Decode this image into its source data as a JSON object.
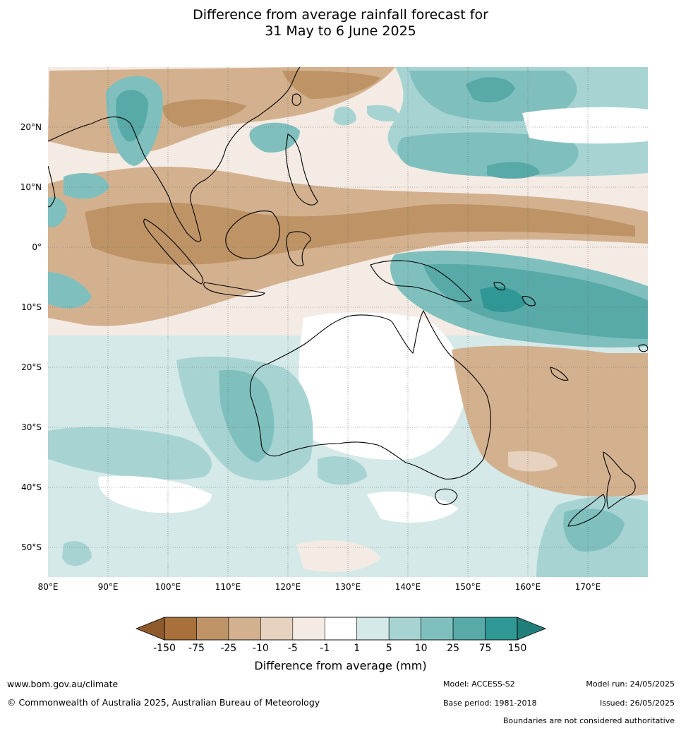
{
  "title_line1": "Difference from average rainfall forecast for",
  "title_line2": "31 May to 6 June 2025",
  "map": {
    "lon_ticks": [
      "80°E",
      "90°E",
      "100°E",
      "110°E",
      "120°E",
      "130°E",
      "140°E",
      "150°E",
      "160°E",
      "170°E"
    ],
    "lat_ticks": [
      "20°N",
      "10°N",
      "0°",
      "10°S",
      "20°S",
      "30°S",
      "40°S",
      "50°S"
    ],
    "lon_range": [
      80,
      180
    ],
    "lat_range": [
      -55,
      30
    ]
  },
  "colorbar": {
    "label": "Difference from average (mm)",
    "tick_labels": [
      "-150",
      "-75",
      "-25",
      "-10",
      "-5",
      "-1",
      "1",
      "5",
      "10",
      "25",
      "75",
      "150"
    ],
    "colors": [
      "#a8703a",
      "#be9466",
      "#d3b18f",
      "#e6d2bf",
      "#f4ebe4",
      "#ffffff",
      "#d4e9e8",
      "#a7d4d3",
      "#7fc0be",
      "#58aaa8",
      "#2f9894"
    ],
    "under_color": "#8f5a2b",
    "over_color": "#217e7a"
  },
  "footer": {
    "website": "www.bom.gov.au/climate",
    "copyright": "© Commonwealth of Australia 2025, Australian Bureau of Meteorology",
    "model": "Model: ACCESS-S2",
    "base_period": "Base period: 1981-2018",
    "model_run": "Model run: 24/05/2025",
    "issued": "Issued: 26/05/2025",
    "disclaimer": "Boundaries are not considered authoritative"
  }
}
